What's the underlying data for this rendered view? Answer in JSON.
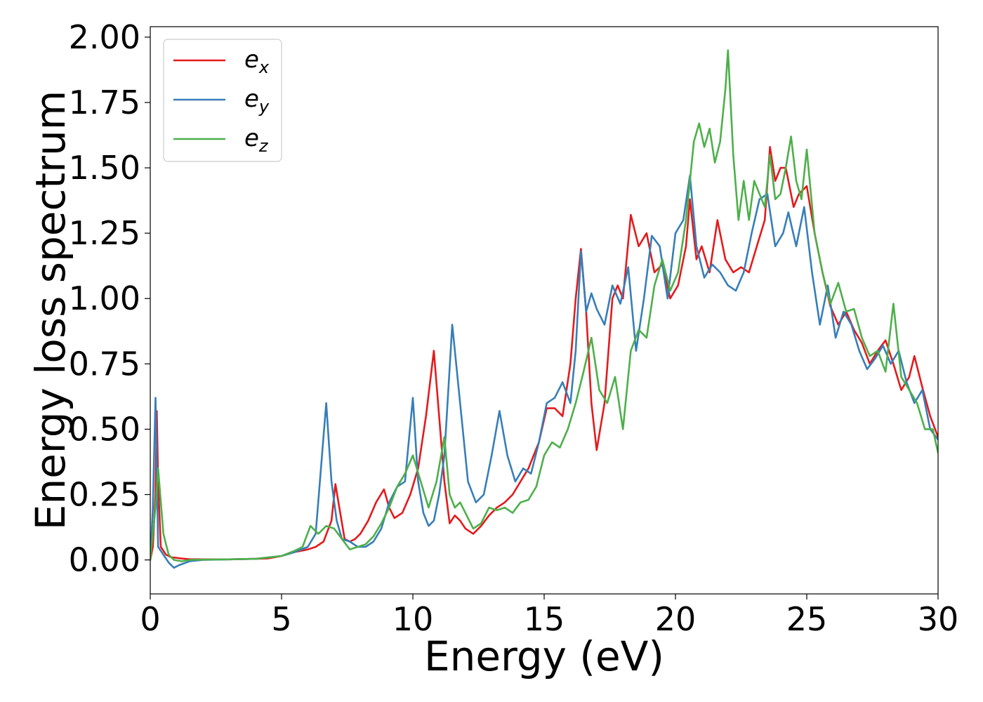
{
  "chart_data": {
    "type": "line",
    "xlabel": "Energy (eV)",
    "ylabel": "Energy loss spectrum",
    "xlim": [
      0,
      30
    ],
    "ylim": [
      -0.13,
      2.04
    ],
    "xticks": [
      0,
      5,
      10,
      15,
      20,
      25,
      30
    ],
    "xtick_labels": [
      "0",
      "5",
      "10",
      "15",
      "20",
      "25",
      "30"
    ],
    "yticks": [
      0.0,
      0.25,
      0.5,
      0.75,
      1.0,
      1.25,
      1.5,
      1.75,
      2.0
    ],
    "ytick_labels": [
      "0.00",
      "0.25",
      "0.50",
      "0.75",
      "1.00",
      "1.25",
      "1.50",
      "1.75",
      "2.00"
    ],
    "grid": false,
    "legend_position": "top-left",
    "series": [
      {
        "name": "e_x",
        "base": "e",
        "sub": "x",
        "color": "#e41a1c",
        "x": [
          0.0,
          0.1,
          0.2,
          0.25,
          0.3,
          0.4,
          0.6,
          0.8,
          1.0,
          1.2,
          1.5,
          2.0,
          3.0,
          4.0,
          4.5,
          5.0,
          5.5,
          6.0,
          6.3,
          6.6,
          6.9,
          7.05,
          7.2,
          7.4,
          7.6,
          7.8,
          8.0,
          8.3,
          8.6,
          8.9,
          9.1,
          9.3,
          9.6,
          9.9,
          10.2,
          10.5,
          10.8,
          11.0,
          11.2,
          11.4,
          11.6,
          11.8,
          12.0,
          12.3,
          12.6,
          12.9,
          13.2,
          13.5,
          13.8,
          14.1,
          14.4,
          14.8,
          15.1,
          15.4,
          15.7,
          16.0,
          16.2,
          16.4,
          16.6,
          16.8,
          17.0,
          17.3,
          17.6,
          17.8,
          18.0,
          18.3,
          18.6,
          18.9,
          19.2,
          19.5,
          19.8,
          20.1,
          20.4,
          20.55,
          20.8,
          21.0,
          21.3,
          21.6,
          21.9,
          22.2,
          22.5,
          22.8,
          23.1,
          23.4,
          23.6,
          23.8,
          24.0,
          24.2,
          24.5,
          24.7,
          25.0,
          25.3,
          25.6,
          25.9,
          26.2,
          26.5,
          26.8,
          27.1,
          27.4,
          27.7,
          28.0,
          28.3,
          28.6,
          28.9,
          29.1,
          29.4,
          29.7,
          30.0
        ],
        "y": [
          0.0,
          0.05,
          0.25,
          0.57,
          0.3,
          0.05,
          0.02,
          0.01,
          0.008,
          0.005,
          0.003,
          0.002,
          0.002,
          0.004,
          0.006,
          0.015,
          0.03,
          0.04,
          0.05,
          0.07,
          0.15,
          0.29,
          0.2,
          0.08,
          0.07,
          0.08,
          0.1,
          0.15,
          0.22,
          0.27,
          0.2,
          0.16,
          0.18,
          0.25,
          0.35,
          0.55,
          0.8,
          0.55,
          0.3,
          0.14,
          0.17,
          0.15,
          0.12,
          0.1,
          0.13,
          0.17,
          0.2,
          0.22,
          0.25,
          0.3,
          0.35,
          0.45,
          0.58,
          0.58,
          0.55,
          0.75,
          1.0,
          1.19,
          0.95,
          0.6,
          0.42,
          0.6,
          1.0,
          1.05,
          1.0,
          1.32,
          1.2,
          1.25,
          1.1,
          1.13,
          1.0,
          1.05,
          1.2,
          1.38,
          1.15,
          1.2,
          1.1,
          1.3,
          1.15,
          1.1,
          1.12,
          1.1,
          1.2,
          1.3,
          1.58,
          1.45,
          1.5,
          1.5,
          1.35,
          1.4,
          1.43,
          1.25,
          1.1,
          0.97,
          0.9,
          0.95,
          0.88,
          0.83,
          0.75,
          0.8,
          0.84,
          0.75,
          0.65,
          0.7,
          0.78,
          0.66,
          0.55,
          0.47
        ]
      },
      {
        "name": "e_y",
        "base": "e",
        "sub": "y",
        "color": "#377eb8",
        "x": [
          0.0,
          0.1,
          0.2,
          0.3,
          0.5,
          0.7,
          0.9,
          1.1,
          1.5,
          2.0,
          3.0,
          4.0,
          5.0,
          5.5,
          6.0,
          6.3,
          6.5,
          6.7,
          6.9,
          7.1,
          7.3,
          7.6,
          7.9,
          8.2,
          8.5,
          8.8,
          9.1,
          9.4,
          9.7,
          10.0,
          10.2,
          10.4,
          10.6,
          10.8,
          11.0,
          11.2,
          11.5,
          11.8,
          12.1,
          12.4,
          12.7,
          13.0,
          13.3,
          13.6,
          13.9,
          14.2,
          14.5,
          14.8,
          15.1,
          15.4,
          15.7,
          16.0,
          16.2,
          16.4,
          16.6,
          16.8,
          17.0,
          17.3,
          17.6,
          17.9,
          18.2,
          18.5,
          18.8,
          19.1,
          19.4,
          19.7,
          20.0,
          20.3,
          20.55,
          20.8,
          21.1,
          21.4,
          21.7,
          22.0,
          22.3,
          22.6,
          22.9,
          23.2,
          23.5,
          23.8,
          24.1,
          24.3,
          24.6,
          24.9,
          25.2,
          25.5,
          25.8,
          26.1,
          26.4,
          26.7,
          27.0,
          27.3,
          27.6,
          27.9,
          28.2,
          28.5,
          28.8,
          29.1,
          29.4,
          29.7,
          30.0
        ],
        "y": [
          0.0,
          0.2,
          0.62,
          0.05,
          0.02,
          -0.01,
          -0.03,
          -0.02,
          -0.005,
          0.0,
          0.002,
          0.004,
          0.015,
          0.03,
          0.05,
          0.1,
          0.35,
          0.6,
          0.3,
          0.15,
          0.08,
          0.07,
          0.05,
          0.05,
          0.07,
          0.12,
          0.22,
          0.28,
          0.3,
          0.62,
          0.3,
          0.18,
          0.13,
          0.15,
          0.25,
          0.4,
          0.9,
          0.6,
          0.3,
          0.22,
          0.25,
          0.4,
          0.57,
          0.4,
          0.3,
          0.35,
          0.33,
          0.45,
          0.6,
          0.62,
          0.68,
          0.6,
          0.8,
          1.18,
          0.95,
          1.02,
          0.96,
          0.9,
          1.05,
          0.98,
          1.12,
          0.8,
          1.0,
          1.24,
          1.2,
          1.0,
          1.25,
          1.3,
          1.47,
          1.2,
          1.08,
          1.13,
          1.1,
          1.05,
          1.03,
          1.1,
          1.25,
          1.38,
          1.4,
          1.2,
          1.25,
          1.33,
          1.2,
          1.35,
          1.1,
          0.9,
          1.05,
          0.85,
          0.95,
          0.9,
          0.8,
          0.73,
          0.77,
          0.82,
          0.75,
          0.8,
          0.68,
          0.6,
          0.65,
          0.5,
          0.46
        ]
      },
      {
        "name": "e_z",
        "base": "e",
        "sub": "z",
        "color": "#4daf4a",
        "x": [
          0.0,
          0.1,
          0.2,
          0.3,
          0.5,
          0.7,
          0.9,
          1.2,
          1.5,
          2.0,
          3.0,
          4.0,
          5.0,
          5.5,
          5.8,
          6.1,
          6.4,
          6.7,
          7.0,
          7.3,
          7.6,
          7.9,
          8.2,
          8.5,
          8.8,
          9.1,
          9.4,
          9.7,
          10.0,
          10.3,
          10.6,
          10.9,
          11.2,
          11.4,
          11.6,
          11.8,
          12.0,
          12.3,
          12.6,
          12.9,
          13.2,
          13.5,
          13.8,
          14.1,
          14.4,
          14.7,
          15.0,
          15.3,
          15.6,
          15.9,
          16.2,
          16.5,
          16.8,
          17.1,
          17.4,
          17.7,
          18.0,
          18.3,
          18.6,
          18.9,
          19.2,
          19.5,
          19.8,
          20.1,
          20.4,
          20.7,
          20.9,
          21.1,
          21.3,
          21.5,
          21.7,
          21.9,
          22.0,
          22.2,
          22.4,
          22.6,
          22.8,
          23.0,
          23.2,
          23.4,
          23.6,
          23.8,
          24.0,
          24.2,
          24.4,
          24.6,
          24.8,
          25.0,
          25.3,
          25.6,
          25.9,
          26.2,
          26.5,
          26.8,
          27.1,
          27.4,
          27.7,
          28.0,
          28.3,
          28.6,
          28.9,
          29.2,
          29.5,
          29.8,
          30.0
        ],
        "y": [
          0.0,
          0.1,
          0.2,
          0.35,
          0.1,
          0.02,
          0.0,
          -0.005,
          0.0,
          0.001,
          0.002,
          0.004,
          0.015,
          0.035,
          0.05,
          0.13,
          0.1,
          0.13,
          0.12,
          0.08,
          0.04,
          0.05,
          0.06,
          0.09,
          0.14,
          0.2,
          0.28,
          0.33,
          0.4,
          0.3,
          0.2,
          0.3,
          0.47,
          0.25,
          0.2,
          0.22,
          0.18,
          0.12,
          0.14,
          0.2,
          0.19,
          0.2,
          0.18,
          0.22,
          0.23,
          0.28,
          0.4,
          0.45,
          0.43,
          0.5,
          0.6,
          0.72,
          0.85,
          0.65,
          0.6,
          0.7,
          0.5,
          0.8,
          0.88,
          0.85,
          1.05,
          1.15,
          1.03,
          1.1,
          1.3,
          1.6,
          1.67,
          1.58,
          1.65,
          1.52,
          1.6,
          1.8,
          1.95,
          1.55,
          1.3,
          1.45,
          1.3,
          1.45,
          1.4,
          1.35,
          1.55,
          1.38,
          1.4,
          1.5,
          1.62,
          1.45,
          1.38,
          1.57,
          1.25,
          1.1,
          0.98,
          1.06,
          0.95,
          0.96,
          0.85,
          0.78,
          0.8,
          0.72,
          0.98,
          0.7,
          0.65,
          0.6,
          0.5,
          0.5,
          0.41
        ]
      }
    ]
  }
}
